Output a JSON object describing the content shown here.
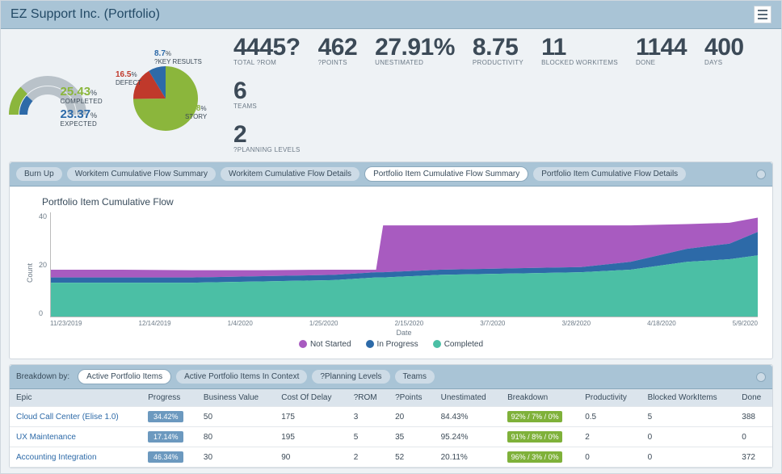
{
  "header": {
    "title": "EZ Support Inc. (Portfolio)"
  },
  "gauge": {
    "completed_pct": "25.43",
    "completed_label": "COMPLETED",
    "expected_pct": "23.37",
    "expected_label": "EXPECTED",
    "arc_completed_color": "#8bb63c",
    "arc_expected_color": "#2d6aa8",
    "track_color": "#b9c2c9"
  },
  "pie": {
    "slices": [
      {
        "pct": 74.8,
        "label": "STORY",
        "color": "#8bb63c",
        "lbl_x": 84,
        "lbl_y": 68
      },
      {
        "pct": 16.5,
        "label": "DEFECT",
        "color": "#c0392b",
        "lbl_x": -2,
        "lbl_y": 26
      },
      {
        "pct": 8.7,
        "label": "?KEY RESULTS",
        "color": "#2d6aa8",
        "lbl_x": 46,
        "lbl_y": 0
      }
    ]
  },
  "kpis": [
    {
      "val": "4445?",
      "cap": "TOTAL ?ROM"
    },
    {
      "val": "462",
      "cap": "?POINTS"
    },
    {
      "val": "27.91%",
      "cap": "UNESTIMATED"
    },
    {
      "val": "8.75",
      "cap": "PRODUCTIVITY"
    },
    {
      "val": "11",
      "cap": "BLOCKED WORKITEMS"
    },
    {
      "val": "1144",
      "cap": "DONE"
    },
    {
      "val": "400",
      "cap": "DAYS"
    },
    {
      "val": "6",
      "cap": "TEAMS"
    },
    {
      "val": "2",
      "cap": "?PLANNING LEVELS"
    }
  ],
  "chart_tabs": {
    "items": [
      "Burn Up",
      "Workitem Cumulative Flow Summary",
      "Workitem Cumulative Flow Details",
      "Portfolio Item Cumulative Flow Summary",
      "Portfolio Item Cumulative Flow Details"
    ],
    "active_index": 3
  },
  "cumflow": {
    "title": "Portfolio Item Cumulative Flow",
    "ylabel": "Count",
    "xlabel": "Date",
    "ymax": 40,
    "ytick_step": 20,
    "x_ticks": [
      "11/23/2019",
      "12/14/2019",
      "1/4/2020",
      "1/25/2020",
      "2/15/2020",
      "3/7/2020",
      "3/28/2020",
      "4/18/2020",
      "5/9/2020"
    ],
    "series": [
      {
        "name": "Not Started",
        "color": "#a85bc0"
      },
      {
        "name": "In Progress",
        "color": "#2d6aa8"
      },
      {
        "name": "Completed",
        "color": "#4bbfa5"
      }
    ],
    "stacked": {
      "x": [
        0,
        0.1,
        0.2,
        0.3,
        0.4,
        0.46,
        0.47,
        0.55,
        0.65,
        0.75,
        0.82,
        0.9,
        0.96,
        1.0
      ],
      "completed": [
        13,
        13,
        13,
        13.5,
        14,
        15,
        15,
        16,
        16.5,
        17,
        18,
        21,
        22,
        23.5
      ],
      "inprog": [
        15,
        15,
        15,
        15.5,
        16,
        17,
        17,
        18,
        18.5,
        19,
        21,
        26,
        28,
        32.5
      ],
      "total": [
        18,
        18,
        17.8,
        17.8,
        18,
        18,
        35,
        35,
        35,
        35,
        35,
        35.5,
        36,
        38
      ]
    }
  },
  "table_tabs": {
    "label": "Breakdown by:",
    "items": [
      "Active Portfolio Items",
      "Active Portfolio Items In Context",
      "?Planning Levels",
      "Teams"
    ],
    "active_index": 0
  },
  "table": {
    "columns": [
      "Epic",
      "Progress",
      "Business Value",
      "Cost Of Delay",
      "?ROM",
      "?Points",
      "Unestimated",
      "Breakdown",
      "Productivity",
      "Blocked WorkItems",
      "Done"
    ],
    "rows": [
      {
        "epic": "Cloud Call Center (Elise 1.0)",
        "progress": "34.42%",
        "bv": "50",
        "cod": "175",
        "rom": "3",
        "pts": "20",
        "unest": "84.43%",
        "bd": "92% / 7% / 0%",
        "bd_color": "#7fb13a",
        "prod": "0.5",
        "blocked": "5",
        "done": "388"
      },
      {
        "epic": "UX Maintenance",
        "progress": "17.14%",
        "bv": "80",
        "cod": "195",
        "rom": "5",
        "pts": "35",
        "unest": "95.24%",
        "bd": "91% / 8% / 0%",
        "bd_color": "#7fb13a",
        "prod": "2",
        "blocked": "0",
        "done": "0"
      },
      {
        "epic": "Accounting Integration",
        "progress": "46.34%",
        "bv": "30",
        "cod": "90",
        "rom": "2",
        "pts": "52",
        "unest": "20.11%",
        "bd": "96% / 3% / 0%",
        "bd_color": "#7fb13a",
        "prod": "0",
        "blocked": "0",
        "done": "372"
      }
    ]
  }
}
